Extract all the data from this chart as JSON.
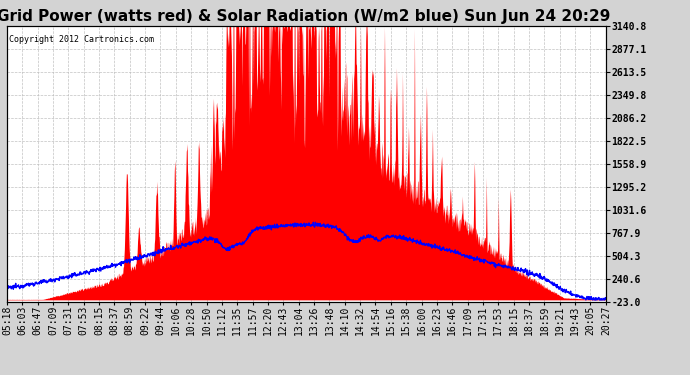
{
  "title": "Grid Power (watts red) & Solar Radiation (W/m2 blue) Sun Jun 24 20:29",
  "copyright": "Copyright 2012 Cartronics.com",
  "ymin": -23.0,
  "ymax": 3140.8,
  "yticks": [
    3140.8,
    2877.1,
    2613.5,
    2349.8,
    2086.2,
    1822.5,
    1558.9,
    1295.2,
    1031.6,
    767.9,
    504.3,
    240.6,
    -23.0
  ],
  "xtick_labels": [
    "05:18",
    "06:03",
    "06:47",
    "07:09",
    "07:31",
    "07:53",
    "08:15",
    "08:37",
    "08:59",
    "09:22",
    "09:44",
    "10:06",
    "10:28",
    "10:50",
    "11:12",
    "11:35",
    "11:57",
    "12:20",
    "12:43",
    "13:04",
    "13:26",
    "13:48",
    "14:10",
    "14:32",
    "14:54",
    "15:16",
    "15:38",
    "16:00",
    "16:23",
    "16:46",
    "17:09",
    "17:31",
    "17:53",
    "18:15",
    "18:37",
    "18:59",
    "19:21",
    "19:43",
    "20:05",
    "20:27"
  ],
  "background_color": "#d3d3d3",
  "plot_bg_color": "#ffffff",
  "grid_color": "#bbbbbb",
  "red_color": "#ff0000",
  "blue_color": "#0000ff",
  "title_fontsize": 11,
  "tick_fontsize": 7.0
}
